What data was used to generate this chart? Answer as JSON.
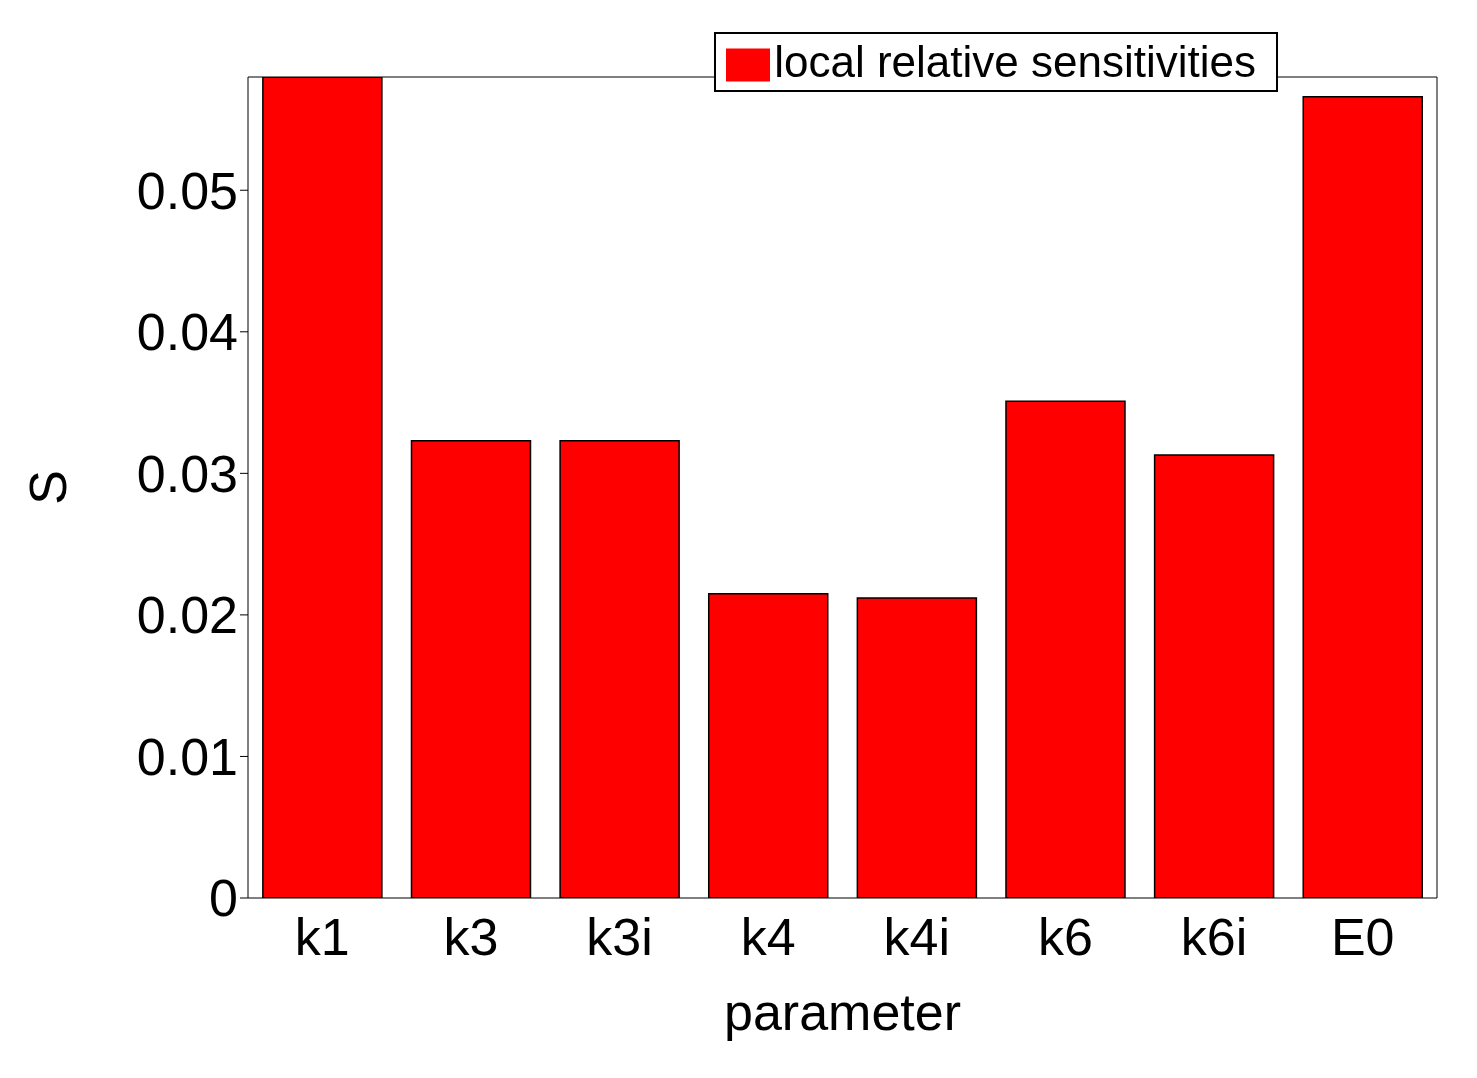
{
  "chart_data": {
    "type": "bar",
    "xlabel": "parameter",
    "ylabel": "S",
    "categories": [
      "k1",
      "k3",
      "k3i",
      "k4",
      "k4i",
      "k6",
      "k6i",
      "E0"
    ],
    "series": [
      {
        "name": "local relative sensitivities",
        "color": "#ff0000",
        "values": [
          0.058,
          0.0323,
          0.0323,
          0.0215,
          0.0212,
          0.0351,
          0.0313,
          0.0566
        ]
      }
    ],
    "ylim": [
      0,
      0.058
    ],
    "yticks": [
      0,
      0.01,
      0.02,
      0.03,
      0.04,
      0.05
    ],
    "grid": false,
    "legend": "top right"
  }
}
